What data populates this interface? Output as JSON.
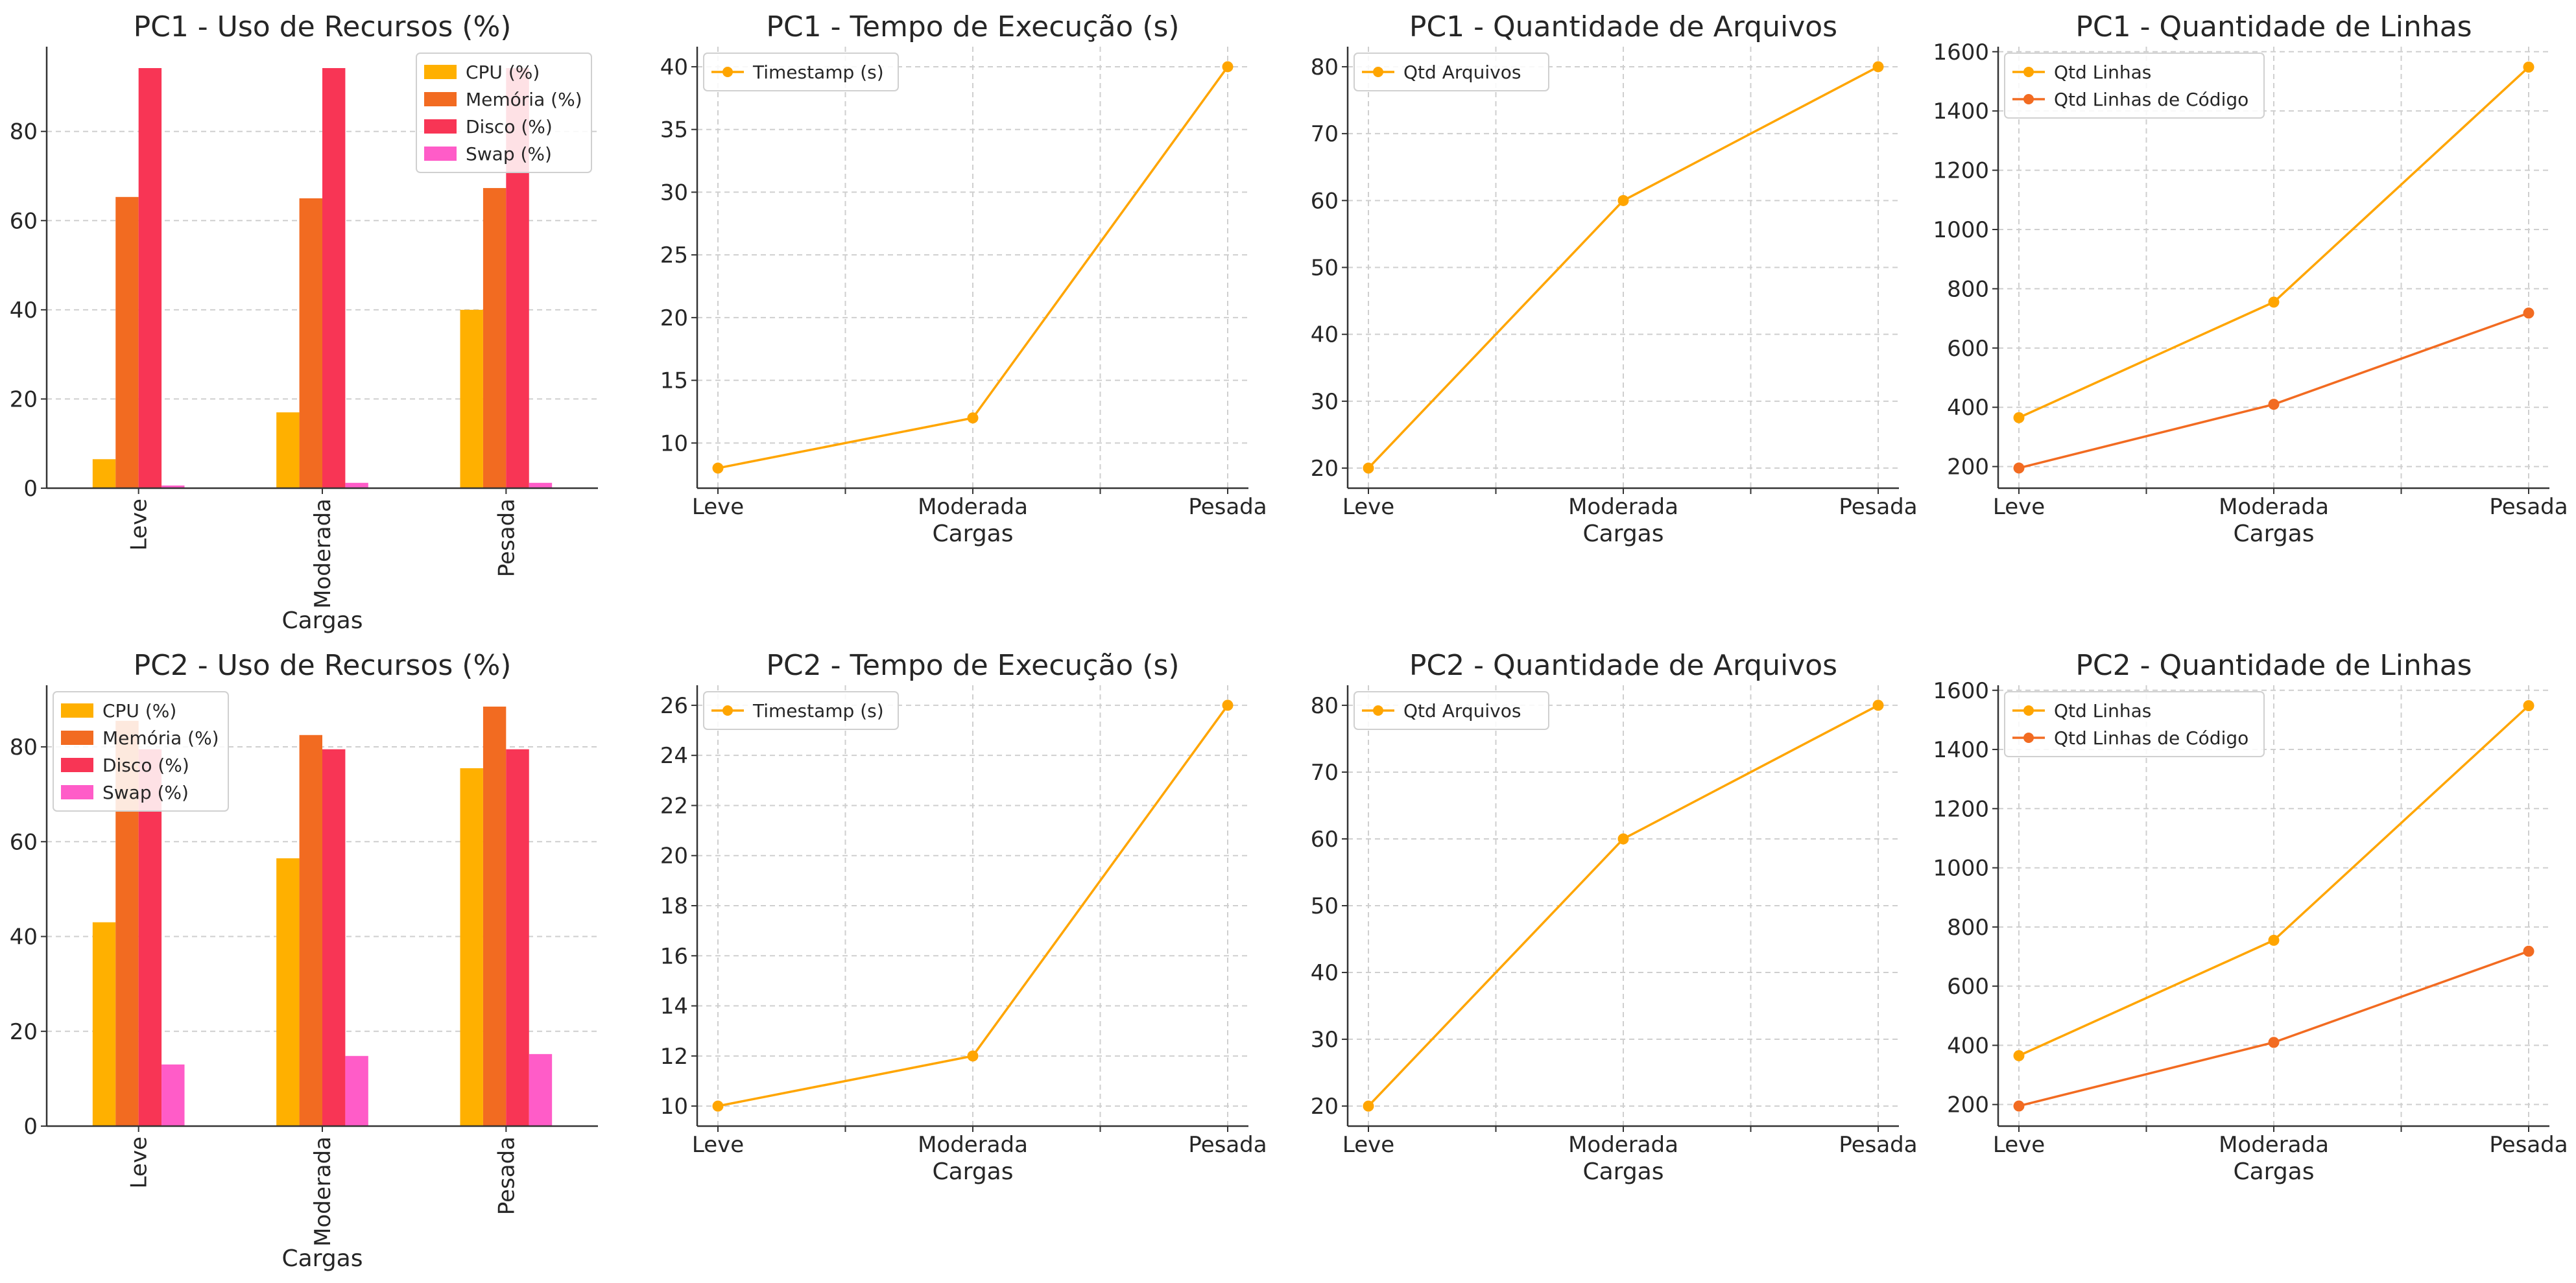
{
  "colors": {
    "cpu": "#FFB000",
    "memoria": "#F26B21",
    "disco": "#F83555",
    "swap": "#FF5CC8",
    "line1": "#FFA500",
    "line2": "#F26B21",
    "grid": "#cfcfcf",
    "axis": "#333333"
  },
  "chart_data": [
    {
      "type": "bar",
      "title": "PC1 - Uso de Recursos (%)",
      "xlabel": "Cargas",
      "ylabel": "",
      "categories": [
        "Leve",
        "Moderada",
        "Pesada"
      ],
      "ylim": [
        0,
        99
      ],
      "yticks": [
        0,
        20,
        40,
        60,
        80
      ],
      "legend_position": "top-right",
      "series": [
        {
          "name": "CPU (%)",
          "values": [
            6.5,
            17,
            40
          ]
        },
        {
          "name": "Memória (%)",
          "values": [
            65.3,
            65,
            67.3
          ]
        },
        {
          "name": "Disco (%)",
          "values": [
            94.2,
            94.2,
            94.2
          ]
        },
        {
          "name": "Swap (%)",
          "values": [
            0.6,
            1.2,
            1.2
          ]
        }
      ]
    },
    {
      "type": "line",
      "title": "PC1 - Tempo de Execução (s)",
      "xlabel": "Cargas",
      "ylabel": "",
      "categories": [
        "Leve",
        "Moderada",
        "Pesada"
      ],
      "ylim": [
        6.4,
        41.6
      ],
      "yticks": [
        10,
        15,
        20,
        25,
        30,
        35,
        40
      ],
      "legend_position": "top-left",
      "series": [
        {
          "name": "Timestamp (s)",
          "values": [
            8,
            12,
            40
          ]
        }
      ]
    },
    {
      "type": "line",
      "title": "PC1 - Quantidade de Arquivos",
      "xlabel": "Cargas",
      "ylabel": "",
      "categories": [
        "Leve",
        "Moderada",
        "Pesada"
      ],
      "ylim": [
        17,
        83
      ],
      "yticks": [
        20,
        30,
        40,
        50,
        60,
        70,
        80
      ],
      "legend_position": "top-left",
      "series": [
        {
          "name": "Qtd Arquivos",
          "values": [
            20,
            60,
            80
          ]
        }
      ]
    },
    {
      "type": "line",
      "title": "PC1 - Quantidade de Linhas",
      "xlabel": "Cargas",
      "ylabel": "",
      "categories": [
        "Leve",
        "Moderada",
        "Pesada"
      ],
      "ylim": [
        127,
        1617
      ],
      "yticks": [
        200,
        400,
        600,
        800,
        1000,
        1200,
        1400,
        1600
      ],
      "legend_position": "top-left",
      "series": [
        {
          "name": "Qtd Linhas",
          "values": [
            365,
            755,
            1548
          ]
        },
        {
          "name": "Qtd Linhas de Código",
          "values": [
            195,
            410,
            718
          ]
        }
      ]
    },
    {
      "type": "bar",
      "title": "PC2 - Uso de Recursos (%)",
      "xlabel": "Cargas",
      "ylabel": "",
      "categories": [
        "Leve",
        "Moderada",
        "Pesada"
      ],
      "ylim": [
        0,
        93
      ],
      "yticks": [
        0,
        20,
        40,
        60,
        80
      ],
      "legend_position": "top-left",
      "series": [
        {
          "name": "CPU (%)",
          "values": [
            43,
            56.5,
            75.5
          ]
        },
        {
          "name": "Memória (%)",
          "values": [
            85.5,
            82.5,
            88.5
          ]
        },
        {
          "name": "Disco (%)",
          "values": [
            79.5,
            79.5,
            79.5
          ]
        },
        {
          "name": "Swap (%)",
          "values": [
            13,
            14.8,
            15.2
          ]
        }
      ]
    },
    {
      "type": "line",
      "title": "PC2 - Tempo de Execução (s)",
      "xlabel": "Cargas",
      "ylabel": "",
      "categories": [
        "Leve",
        "Moderada",
        "Pesada"
      ],
      "ylim": [
        9.2,
        26.8
      ],
      "yticks": [
        10,
        12,
        14,
        16,
        18,
        20,
        22,
        24,
        26
      ],
      "legend_position": "top-left",
      "series": [
        {
          "name": "Timestamp (s)",
          "values": [
            10,
            12,
            26
          ]
        }
      ]
    },
    {
      "type": "line",
      "title": "PC2 - Quantidade de Arquivos",
      "xlabel": "Cargas",
      "ylabel": "",
      "categories": [
        "Leve",
        "Moderada",
        "Pesada"
      ],
      "ylim": [
        17,
        83
      ],
      "yticks": [
        20,
        30,
        40,
        50,
        60,
        70,
        80
      ],
      "legend_position": "top-left",
      "series": [
        {
          "name": "Qtd Arquivos",
          "values": [
            20,
            60,
            80
          ]
        }
      ]
    },
    {
      "type": "line",
      "title": "PC2 - Quantidade de Linhas",
      "xlabel": "Cargas",
      "ylabel": "",
      "categories": [
        "Leve",
        "Moderada",
        "Pesada"
      ],
      "ylim": [
        127,
        1617
      ],
      "yticks": [
        200,
        400,
        600,
        800,
        1000,
        1200,
        1400,
        1600
      ],
      "legend_position": "top-left",
      "series": [
        {
          "name": "Qtd Linhas",
          "values": [
            365,
            755,
            1548
          ]
        },
        {
          "name": "Qtd Linhas de Código",
          "values": [
            195,
            410,
            718
          ]
        }
      ]
    }
  ]
}
